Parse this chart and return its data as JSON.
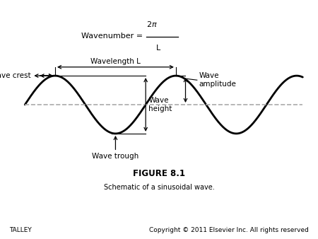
{
  "fig_width": 4.5,
  "fig_height": 3.38,
  "dpi": 100,
  "background_color": "#ffffff",
  "wave_color": "#000000",
  "wave_linewidth": 2.0,
  "dashed_color": "#aaaaaa",
  "dashed_linewidth": 1.2,
  "arrow_color": "#000000",
  "arrow_linewidth": 0.9,
  "wavelength_label": "Wavelength L—",
  "wave_crest_label": "Wave crest",
  "wave_trough_label": "Wave trough",
  "wave_height_label": "Wave\nheight",
  "wave_amplitude_label": "Wave\namplitude",
  "figure_label": "FIGURE 8.1",
  "subtitle": "Schematic of a sinusoidal wave.",
  "footer_left": "TALLEY",
  "footer_right": "Copyright © 2011 Elsevier Inc. All rights reserved",
  "label_fontsize": 7.5,
  "figure_label_fontsize": 8.5,
  "subtitle_fontsize": 7,
  "footer_fontsize": 6.5,
  "wavenumber_fontsize": 8
}
